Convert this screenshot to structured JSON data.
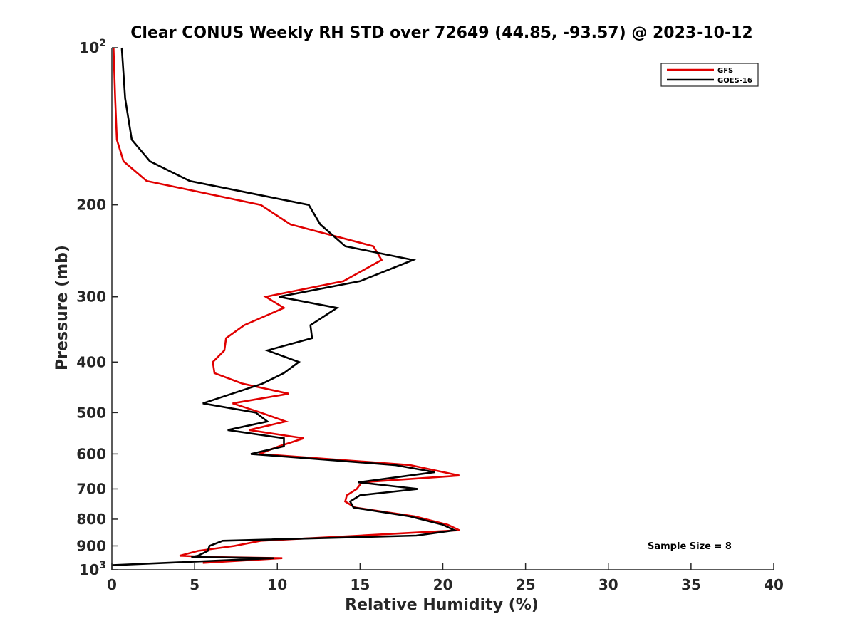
{
  "chart_data": {
    "type": "line",
    "title": "Clear CONUS Weekly RH STD over 72649 (44.85, -93.57) @ 2023-10-12",
    "xlabel": "Relative Humidity (%)",
    "ylabel": "Pressure (mb)",
    "xlim": [
      0,
      40
    ],
    "ylim": [
      100,
      1000
    ],
    "y_scale": "log",
    "y_reversed": true,
    "grid": false,
    "legend_position": "top-right",
    "xticks": [
      0,
      5,
      10,
      15,
      20,
      25,
      30,
      35,
      40
    ],
    "xtick_labels": [
      "0",
      "5",
      "10",
      "15",
      "20",
      "25",
      "30",
      "35",
      "40"
    ],
    "yticks": [
      100,
      200,
      300,
      400,
      500,
      600,
      700,
      800,
      900,
      1000
    ],
    "ytick_labels": [
      {
        "base": "10",
        "exp": "2"
      },
      {
        "base": "200",
        "exp": ""
      },
      {
        "base": "300",
        "exp": ""
      },
      {
        "base": "400",
        "exp": ""
      },
      {
        "base": "500",
        "exp": ""
      },
      {
        "base": "600",
        "exp": ""
      },
      {
        "base": "700",
        "exp": ""
      },
      {
        "base": "800",
        "exp": ""
      },
      {
        "base": "900",
        "exp": ""
      },
      {
        "base": "10",
        "exp": "3"
      }
    ],
    "annotation": "Sample Size = 8",
    "series": [
      {
        "name": "GFS",
        "color": "#e00000",
        "points": [
          [
            0.1,
            100
          ],
          [
            0.2,
            125
          ],
          [
            0.3,
            150
          ],
          [
            0.7,
            165
          ],
          [
            2.1,
            180
          ],
          [
            9.0,
            200
          ],
          [
            10.8,
            218
          ],
          [
            15.8,
            240
          ],
          [
            16.3,
            255
          ],
          [
            14.0,
            280
          ],
          [
            9.3,
            300
          ],
          [
            10.4,
            315
          ],
          [
            8.0,
            340
          ],
          [
            6.9,
            360
          ],
          [
            6.8,
            380
          ],
          [
            6.1,
            400
          ],
          [
            6.2,
            420
          ],
          [
            7.9,
            440
          ],
          [
            10.7,
            460
          ],
          [
            7.3,
            480
          ],
          [
            9.0,
            500
          ],
          [
            10.5,
            520
          ],
          [
            8.3,
            540
          ],
          [
            11.6,
            560
          ],
          [
            10.1,
            580
          ],
          [
            8.9,
            600
          ],
          [
            18.0,
            630
          ],
          [
            21.0,
            660
          ],
          [
            15.1,
            680
          ],
          [
            14.8,
            700
          ],
          [
            14.2,
            720
          ],
          [
            14.1,
            740
          ],
          [
            14.7,
            760
          ],
          [
            18.3,
            790
          ],
          [
            20.3,
            820
          ],
          [
            21.0,
            840
          ],
          [
            15.0,
            860
          ],
          [
            9.0,
            880
          ],
          [
            7.4,
            900
          ],
          [
            5.2,
            920
          ],
          [
            4.1,
            940
          ],
          [
            6.0,
            945
          ],
          [
            10.3,
            950
          ],
          [
            5.5,
            970
          ]
        ]
      },
      {
        "name": "GOES-16",
        "color": "#000000",
        "points": [
          [
            0.6,
            100
          ],
          [
            0.8,
            125
          ],
          [
            1.2,
            150
          ],
          [
            2.3,
            165
          ],
          [
            4.7,
            180
          ],
          [
            11.9,
            200
          ],
          [
            12.6,
            218
          ],
          [
            14.1,
            240
          ],
          [
            18.2,
            255
          ],
          [
            15.0,
            280
          ],
          [
            10.1,
            300
          ],
          [
            13.6,
            315
          ],
          [
            12.0,
            340
          ],
          [
            12.1,
            360
          ],
          [
            9.4,
            380
          ],
          [
            11.3,
            400
          ],
          [
            10.4,
            420
          ],
          [
            9.1,
            440
          ],
          [
            5.5,
            480
          ],
          [
            8.7,
            500
          ],
          [
            9.4,
            520
          ],
          [
            7.0,
            540
          ],
          [
            10.4,
            560
          ],
          [
            10.4,
            580
          ],
          [
            8.4,
            600
          ],
          [
            17.1,
            630
          ],
          [
            19.5,
            650
          ],
          [
            14.9,
            680
          ],
          [
            18.5,
            700
          ],
          [
            15.0,
            720
          ],
          [
            14.4,
            740
          ],
          [
            14.6,
            760
          ],
          [
            18.0,
            790
          ],
          [
            20.0,
            820
          ],
          [
            20.7,
            840
          ],
          [
            18.4,
            860
          ],
          [
            6.7,
            880
          ],
          [
            5.9,
            900
          ],
          [
            5.8,
            920
          ],
          [
            5.2,
            940
          ],
          [
            4.8,
            945
          ],
          [
            9.8,
            950
          ],
          [
            0.0,
            980
          ]
        ]
      }
    ]
  }
}
